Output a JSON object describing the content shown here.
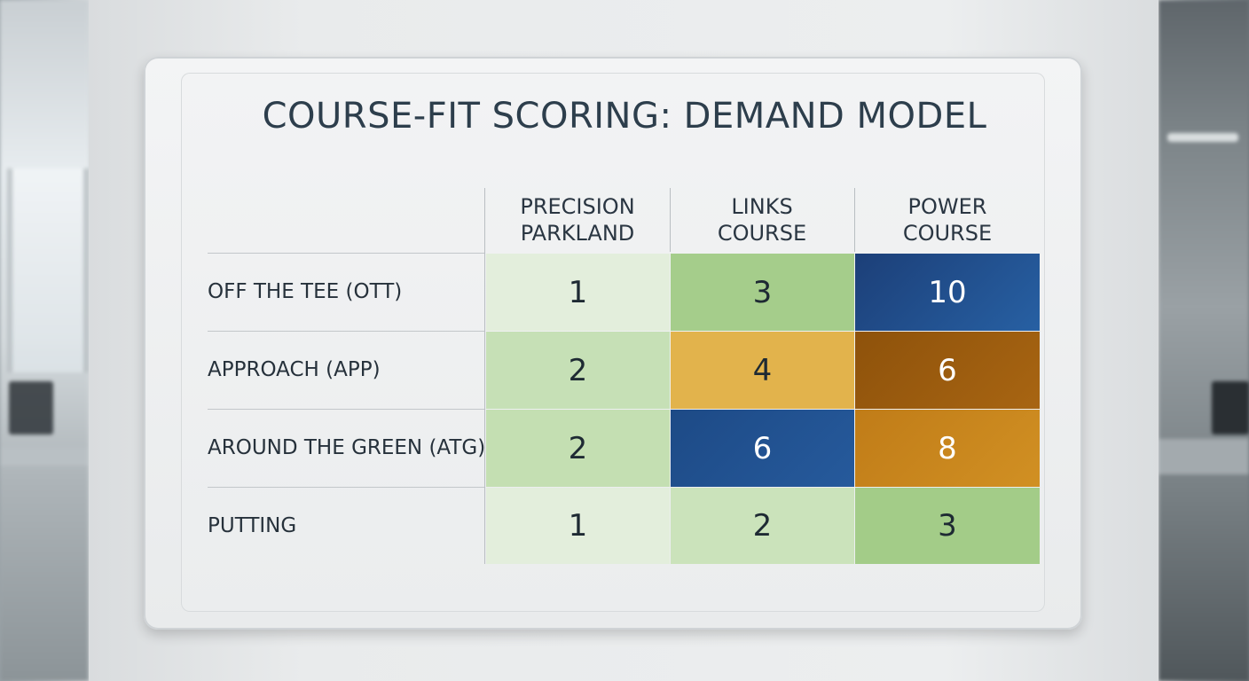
{
  "title": "COURSE-FIT SCORING: DEMAND MODEL",
  "columns": [
    {
      "line1": "PRECISION",
      "line2": "PARKLAND"
    },
    {
      "line1": "LINKS",
      "line2": "COURSE"
    },
    {
      "line1": "POWER",
      "line2": "COURSE"
    }
  ],
  "rows": [
    {
      "label": "OFF THE TEE (OTT)",
      "values": [
        "1",
        "3",
        "10"
      ]
    },
    {
      "label": "APPROACH (APP)",
      "values": [
        "2",
        "4",
        "6"
      ]
    },
    {
      "label": "AROUND THE GREEN (ATG)",
      "values": [
        "2",
        "6",
        "8"
      ]
    },
    {
      "label": "PUTTING",
      "values": [
        "1",
        "2",
        "3"
      ]
    }
  ],
  "colors": {
    "pale_green": "#e2eedb",
    "light_green": "#c5dfb4",
    "mid_green": "#a3cc88",
    "yellow": "#e1b14a",
    "dark_orange": "#9e5f10",
    "orange": "#c8841c",
    "blue": "#1f4f8c"
  }
}
